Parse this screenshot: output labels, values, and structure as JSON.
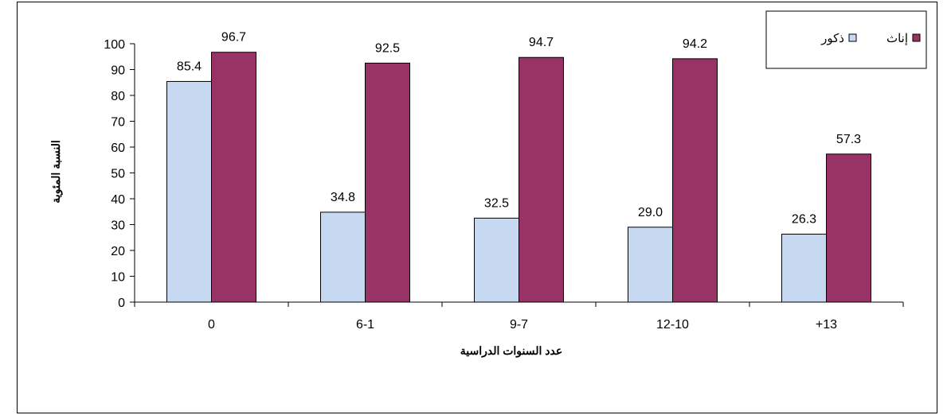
{
  "chart_data": {
    "type": "bar",
    "categories": [
      "0",
      "6-1",
      "9-7",
      "12-10",
      "+13"
    ],
    "series": [
      {
        "name": "ذكور",
        "color": "#c6d9f1",
        "values": [
          85.4,
          34.8,
          32.5,
          29.0,
          26.3
        ]
      },
      {
        "name": "إناث",
        "color": "#993366",
        "values": [
          96.7,
          92.5,
          94.7,
          94.2,
          57.3
        ]
      }
    ],
    "title": "",
    "xlabel": "عدد السنوات الدراسية",
    "ylabel": "النسبة المئوية",
    "ylim": [
      0,
      100
    ],
    "ytick_step": 10,
    "grid": false,
    "legend_position": "top-right"
  }
}
